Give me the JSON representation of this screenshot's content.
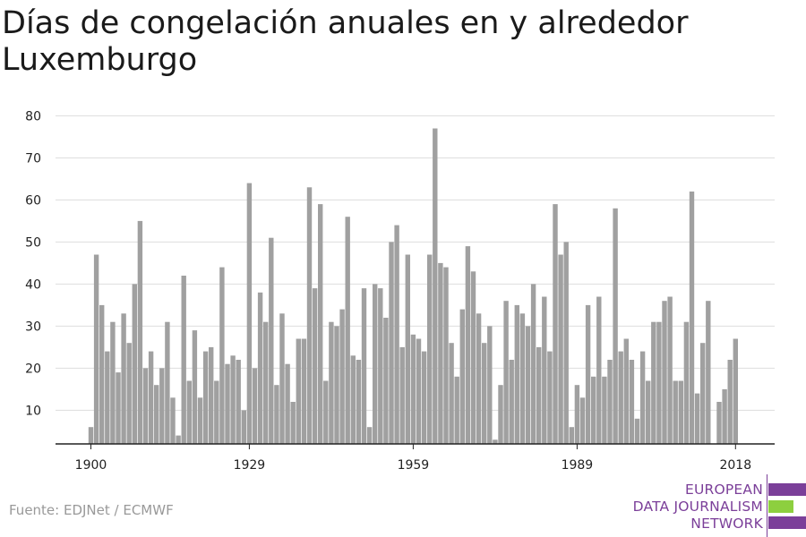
{
  "title": "Días de congelación anuales en y alrededor Luxemburgo",
  "source": "Fuente: EDJNet / ECMWF",
  "logo": {
    "line1": "EUROPEAN",
    "line2": "DATA JOURNALISM",
    "line3": "NETWORK",
    "purple": "#7b3f99",
    "green": "#8dcf3f"
  },
  "colors": {
    "bar": "#a0a0a0",
    "grid": "#dddddd",
    "axis": "#222222"
  },
  "chart_data": {
    "type": "bar",
    "title": "Días de congelación anuales en y alrededor Luxemburgo",
    "xlabel": "",
    "ylabel": "",
    "x": [
      1900,
      1901,
      1902,
      1903,
      1904,
      1905,
      1906,
      1907,
      1908,
      1909,
      1910,
      1911,
      1912,
      1913,
      1914,
      1915,
      1916,
      1917,
      1918,
      1919,
      1920,
      1921,
      1922,
      1923,
      1924,
      1925,
      1926,
      1927,
      1928,
      1929,
      1930,
      1931,
      1932,
      1933,
      1934,
      1935,
      1936,
      1937,
      1938,
      1939,
      1940,
      1941,
      1942,
      1943,
      1944,
      1945,
      1946,
      1947,
      1948,
      1949,
      1950,
      1951,
      1952,
      1953,
      1954,
      1955,
      1956,
      1957,
      1958,
      1959,
      1960,
      1961,
      1962,
      1963,
      1964,
      1965,
      1966,
      1967,
      1968,
      1969,
      1970,
      1971,
      1972,
      1973,
      1974,
      1975,
      1976,
      1977,
      1978,
      1979,
      1980,
      1981,
      1982,
      1983,
      1984,
      1985,
      1986,
      1987,
      1988,
      1989,
      1990,
      1991,
      1992,
      1993,
      1994,
      1995,
      1996,
      1997,
      1998,
      1999,
      2000,
      2001,
      2002,
      2003,
      2004,
      2005,
      2006,
      2007,
      2008,
      2009,
      2010,
      2011,
      2012,
      2013,
      2014,
      2015,
      2016,
      2017,
      2018
    ],
    "values": [
      6,
      47,
      35,
      24,
      31,
      19,
      33,
      26,
      40,
      55,
      20,
      24,
      16,
      20,
      31,
      13,
      4,
      42,
      17,
      29,
      13,
      24,
      25,
      17,
      44,
      21,
      23,
      22,
      10,
      64,
      20,
      38,
      31,
      51,
      16,
      33,
      21,
      12,
      27,
      27,
      63,
      39,
      59,
      17,
      31,
      30,
      34,
      56,
      23,
      22,
      39,
      6,
      40,
      39,
      32,
      50,
      54,
      25,
      47,
      28,
      27,
      24,
      47,
      77,
      45,
      44,
      26,
      18,
      34,
      49,
      43,
      33,
      26,
      30,
      3,
      16,
      36,
      22,
      35,
      33,
      30,
      40,
      25,
      37,
      24,
      59,
      47,
      50,
      6,
      16,
      13,
      35,
      18,
      37,
      18,
      22,
      58,
      24,
      27,
      22,
      8,
      24,
      17,
      31,
      31,
      36,
      37,
      17,
      17,
      31,
      62,
      14,
      26,
      36,
      0,
      12,
      15,
      22,
      27
    ],
    "xticks": [
      "1900",
      "1929",
      "1959",
      "1989",
      "2018"
    ],
    "yticks": [
      "10",
      "20",
      "30",
      "40",
      "50",
      "60",
      "70",
      "80"
    ],
    "ylim": [
      2,
      82
    ],
    "grid": true,
    "legend": "none"
  }
}
